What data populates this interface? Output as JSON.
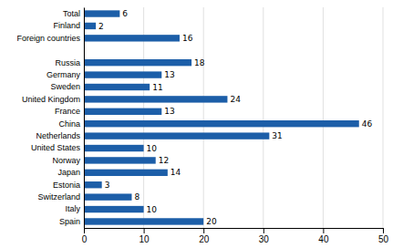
{
  "chart_data": {
    "type": "bar",
    "orientation": "horizontal",
    "categories": [
      "Spain",
      "Italy",
      "Switzerland",
      "Estonia",
      "Japan",
      "Norway",
      "United States",
      "Netherlands",
      "China",
      "France",
      "United Kingdom",
      "Sweden",
      "Germany",
      "Russia",
      null,
      "Foreign countries",
      "Finland",
      "Total"
    ],
    "values": [
      20,
      10,
      8,
      3,
      14,
      12,
      10,
      31,
      46,
      13,
      24,
      11,
      13,
      18,
      null,
      16,
      2,
      6
    ],
    "color": "#1c5ea8",
    "xlim": [
      0,
      50
    ],
    "xticks": [
      0,
      10,
      20,
      30,
      40,
      50
    ],
    "grid": true,
    "data_labels": true
  }
}
